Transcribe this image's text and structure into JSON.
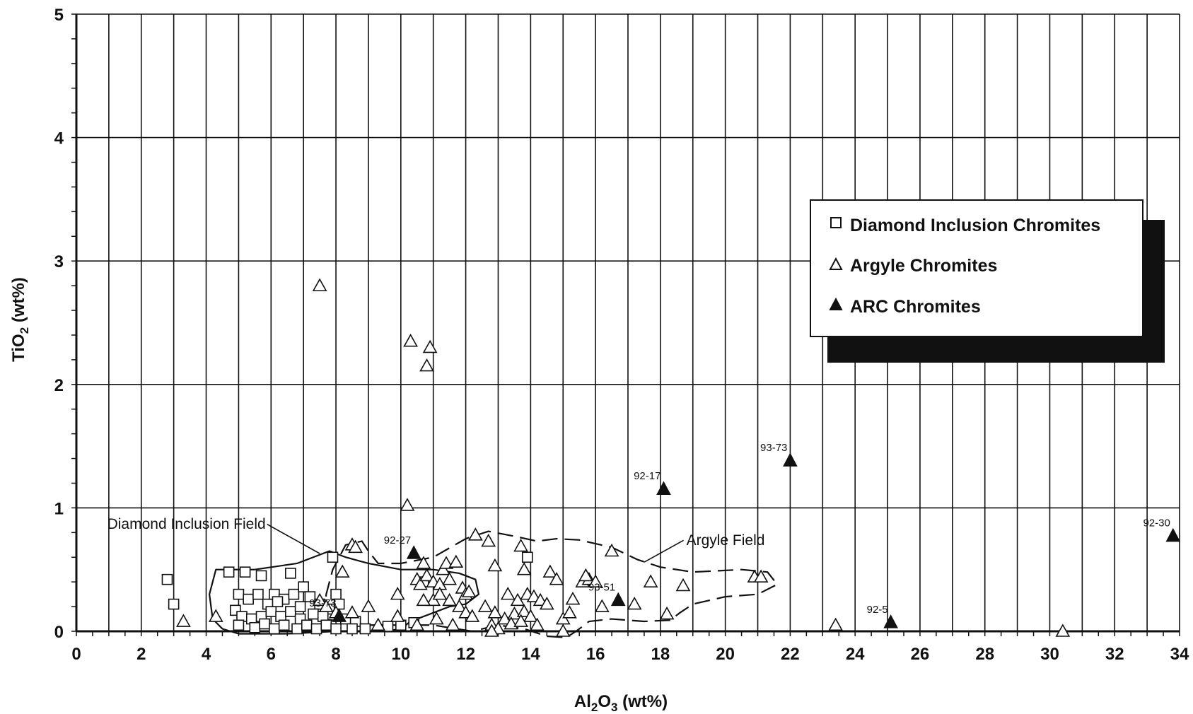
{
  "chart_data": {
    "type": "scatter",
    "xlabel": "Al2O3 (wt%)",
    "ylabel": "TiO2 (wt%)",
    "xlim": [
      0,
      34
    ],
    "ylim": [
      0,
      5
    ],
    "x_ticks": [
      0,
      2,
      4,
      6,
      8,
      10,
      12,
      14,
      16,
      18,
      20,
      22,
      24,
      26,
      28,
      30,
      32,
      34
    ],
    "y_ticks": [
      0,
      1,
      2,
      3,
      4,
      5
    ],
    "grid": true,
    "legend_position": "top-right",
    "series": [
      {
        "name": "Diamond Inclusion Chromites",
        "marker": "open-square",
        "points": [
          [
            2.8,
            0.42
          ],
          [
            3.0,
            0.22
          ],
          [
            4.7,
            0.48
          ],
          [
            5.2,
            0.48
          ],
          [
            5.7,
            0.45
          ],
          [
            6.6,
            0.47
          ],
          [
            7.9,
            0.6
          ],
          [
            8.0,
            0.3
          ],
          [
            5.0,
            0.3
          ],
          [
            5.3,
            0.26
          ],
          [
            5.6,
            0.3
          ],
          [
            5.9,
            0.22
          ],
          [
            6.1,
            0.3
          ],
          [
            6.4,
            0.26
          ],
          [
            6.7,
            0.3
          ],
          [
            7.0,
            0.36
          ],
          [
            7.2,
            0.28
          ],
          [
            7.5,
            0.22
          ],
          [
            7.8,
            0.18
          ],
          [
            8.1,
            0.22
          ],
          [
            4.9,
            0.17
          ],
          [
            5.1,
            0.12
          ],
          [
            5.4,
            0.1
          ],
          [
            5.7,
            0.12
          ],
          [
            6.0,
            0.16
          ],
          [
            6.3,
            0.12
          ],
          [
            6.6,
            0.16
          ],
          [
            6.9,
            0.1
          ],
          [
            7.3,
            0.14
          ],
          [
            7.6,
            0.12
          ],
          [
            8.3,
            0.1
          ],
          [
            8.6,
            0.08
          ],
          [
            5.0,
            0.05
          ],
          [
            5.5,
            0.03
          ],
          [
            5.8,
            0.06
          ],
          [
            6.1,
            0.02
          ],
          [
            6.4,
            0.05
          ],
          [
            6.8,
            0.02
          ],
          [
            7.1,
            0.05
          ],
          [
            7.4,
            0.02
          ],
          [
            7.7,
            0.05
          ],
          [
            8.0,
            0.02
          ],
          [
            8.5,
            0.02
          ],
          [
            8.9,
            0.02
          ],
          [
            9.6,
            0.04
          ],
          [
            10.0,
            0.05
          ],
          [
            10.4,
            0.07
          ],
          [
            10.7,
            0.4
          ],
          [
            13.9,
            0.6
          ],
          [
            6.2,
            0.24
          ],
          [
            6.9,
            0.2
          ]
        ]
      },
      {
        "name": "Argyle Chromites",
        "marker": "open-triangle",
        "points": [
          [
            3.3,
            0.08
          ],
          [
            4.3,
            0.12
          ],
          [
            7.5,
            2.8
          ],
          [
            10.3,
            2.35
          ],
          [
            10.8,
            2.15
          ],
          [
            10.9,
            2.3
          ],
          [
            10.2,
            1.02
          ],
          [
            8.5,
            0.7
          ],
          [
            8.6,
            0.68
          ],
          [
            8.2,
            0.48
          ],
          [
            7.5,
            0.25
          ],
          [
            7.7,
            0.2
          ],
          [
            8.0,
            0.15
          ],
          [
            8.5,
            0.15
          ],
          [
            9.0,
            0.2
          ],
          [
            9.3,
            0.05
          ],
          [
            9.9,
            0.3
          ],
          [
            9.9,
            0.12
          ],
          [
            10.5,
            0.42
          ],
          [
            10.6,
            0.38
          ],
          [
            10.7,
            0.55
          ],
          [
            10.8,
            0.45
          ],
          [
            11.0,
            0.4
          ],
          [
            11.2,
            0.38
          ],
          [
            11.3,
            0.5
          ],
          [
            11.4,
            0.55
          ],
          [
            11.5,
            0.42
          ],
          [
            11.7,
            0.56
          ],
          [
            11.9,
            0.35
          ],
          [
            12.0,
            0.3
          ],
          [
            12.1,
            0.32
          ],
          [
            11.0,
            0.25
          ],
          [
            11.2,
            0.3
          ],
          [
            11.5,
            0.25
          ],
          [
            11.8,
            0.2
          ],
          [
            12.0,
            0.15
          ],
          [
            12.2,
            0.12
          ],
          [
            10.7,
            0.25
          ],
          [
            10.5,
            0.05
          ],
          [
            11.1,
            0.1
          ],
          [
            11.6,
            0.05
          ],
          [
            12.3,
            0.78
          ],
          [
            12.7,
            0.73
          ],
          [
            12.9,
            0.53
          ],
          [
            13.7,
            0.69
          ],
          [
            13.8,
            0.5
          ],
          [
            14.6,
            0.48
          ],
          [
            14.8,
            0.42
          ],
          [
            13.3,
            0.3
          ],
          [
            13.6,
            0.25
          ],
          [
            13.9,
            0.3
          ],
          [
            14.1,
            0.28
          ],
          [
            14.3,
            0.25
          ],
          [
            14.5,
            0.22
          ],
          [
            12.6,
            0.2
          ],
          [
            12.9,
            0.15
          ],
          [
            13.2,
            0.1
          ],
          [
            13.5,
            0.14
          ],
          [
            13.8,
            0.16
          ],
          [
            14.0,
            0.12
          ],
          [
            12.8,
            0.05
          ],
          [
            13.0,
            0.02
          ],
          [
            13.4,
            0.06
          ],
          [
            13.7,
            0.08
          ],
          [
            14.2,
            0.05
          ],
          [
            15.0,
            0.1
          ],
          [
            15.2,
            0.15
          ],
          [
            15.0,
            0.0
          ],
          [
            12.8,
            0.0
          ],
          [
            15.3,
            0.26
          ],
          [
            15.6,
            0.4
          ],
          [
            15.8,
            0.42
          ],
          [
            16.0,
            0.4
          ],
          [
            15.7,
            0.45
          ],
          [
            16.2,
            0.2
          ],
          [
            16.5,
            0.65
          ],
          [
            17.2,
            0.22
          ],
          [
            17.7,
            0.4
          ],
          [
            18.2,
            0.14
          ],
          [
            18.7,
            0.37
          ],
          [
            20.9,
            0.44
          ],
          [
            21.1,
            0.44
          ],
          [
            23.4,
            0.05
          ],
          [
            30.4,
            0.0
          ]
        ]
      },
      {
        "name": "ARC Chromites",
        "marker": "filled-triangle",
        "points": [
          [
            10.4,
            0.63
          ],
          [
            8.1,
            0.12
          ],
          [
            16.7,
            0.25
          ],
          [
            18.1,
            1.15
          ],
          [
            22.0,
            1.38
          ],
          [
            25.1,
            0.07
          ],
          [
            33.8,
            0.77
          ]
        ]
      }
    ],
    "point_labels": [
      {
        "text": "92-27",
        "x": 10.4,
        "y": 0.63
      },
      {
        "text": "93-73",
        "x": 8.1,
        "y": 0.12
      },
      {
        "text": "93-51",
        "x": 16.7,
        "y": 0.25
      },
      {
        "text": "92-17",
        "x": 18.1,
        "y": 1.15
      },
      {
        "text": "93-73",
        "x": 22.0,
        "y": 1.38
      },
      {
        "text": "92-5",
        "x": 25.1,
        "y": 0.07
      },
      {
        "text": "92-30",
        "x": 33.8,
        "y": 0.77
      }
    ],
    "fields": [
      {
        "name": "Diamond Inclusion Field",
        "style": "solid",
        "outline": [
          [
            4.2,
            0.1
          ],
          [
            4.1,
            0.3
          ],
          [
            4.3,
            0.5
          ],
          [
            5.5,
            0.5
          ],
          [
            6.8,
            0.55
          ],
          [
            7.8,
            0.65
          ],
          [
            8.3,
            0.6
          ],
          [
            9.0,
            0.55
          ],
          [
            10.0,
            0.5
          ],
          [
            11.0,
            0.5
          ],
          [
            11.8,
            0.47
          ],
          [
            12.3,
            0.42
          ],
          [
            12.4,
            0.3
          ],
          [
            12.0,
            0.22
          ],
          [
            11.5,
            0.2
          ],
          [
            11.0,
            0.15
          ],
          [
            10.3,
            0.08
          ],
          [
            10.0,
            0.02
          ],
          [
            9.5,
            0.0
          ],
          [
            8.0,
            0.0
          ],
          [
            6.5,
            -0.02
          ],
          [
            5.0,
            -0.02
          ],
          [
            4.5,
            0.02
          ],
          [
            4.2,
            0.1
          ]
        ]
      },
      {
        "name": "Argyle Field",
        "style": "dashed",
        "outline": [
          [
            7.6,
            0.1
          ],
          [
            7.7,
            0.3
          ],
          [
            7.9,
            0.5
          ],
          [
            8.3,
            0.7
          ],
          [
            8.8,
            0.73
          ],
          [
            9.0,
            0.65
          ],
          [
            9.3,
            0.55
          ],
          [
            10.0,
            0.55
          ],
          [
            11.0,
            0.6
          ],
          [
            12.0,
            0.75
          ],
          [
            12.7,
            0.81
          ],
          [
            13.5,
            0.77
          ],
          [
            14.2,
            0.73
          ],
          [
            14.8,
            0.75
          ],
          [
            15.5,
            0.74
          ],
          [
            16.5,
            0.68
          ],
          [
            17.3,
            0.58
          ],
          [
            18.0,
            0.52
          ],
          [
            19.0,
            0.48
          ],
          [
            20.5,
            0.5
          ],
          [
            21.3,
            0.48
          ],
          [
            21.6,
            0.38
          ],
          [
            21.0,
            0.3
          ],
          [
            20.0,
            0.28
          ],
          [
            19.0,
            0.22
          ],
          [
            18.6,
            0.15
          ],
          [
            18.3,
            0.09
          ],
          [
            17.5,
            0.08
          ],
          [
            16.5,
            0.1
          ],
          [
            15.8,
            0.08
          ],
          [
            15.4,
            0.0
          ],
          [
            15.1,
            -0.05
          ],
          [
            14.5,
            -0.04
          ],
          [
            13.8,
            0.02
          ],
          [
            13.0,
            0.05
          ],
          [
            12.2,
            0.0
          ],
          [
            11.0,
            0.05
          ],
          [
            10.0,
            0.05
          ],
          [
            9.0,
            0.05
          ],
          [
            8.2,
            0.08
          ],
          [
            7.6,
            0.1
          ]
        ]
      }
    ],
    "annotations": [
      {
        "text": "Diamond Inclusion Field",
        "x": 0.95,
        "y": 0.83,
        "target": [
          7.5,
          0.63
        ]
      },
      {
        "text": "Argyle Field",
        "x": 18.8,
        "y": 0.7,
        "target": [
          17.5,
          0.56
        ]
      }
    ]
  },
  "axis_text": {
    "xlabel_main": "Al",
    "xlabel_sub1": "2",
    "xlabel_mid": "O",
    "xlabel_sub2": "3",
    "xlabel_tail": " (wt%)",
    "ylabel_main": "TiO",
    "ylabel_sub": "2",
    "ylabel_tail": " (wt%)"
  },
  "legend": {
    "items": [
      {
        "label": "Diamond Inclusion Chromites",
        "icon": "open-square-icon"
      },
      {
        "label": "Argyle Chromites",
        "icon": "open-triangle-icon"
      },
      {
        "label": "ARC Chromites",
        "icon": "filled-triangle-icon"
      }
    ]
  },
  "colors": {
    "ink": "#111111",
    "background": "#ffffff",
    "legend_shadow": "#111111"
  }
}
